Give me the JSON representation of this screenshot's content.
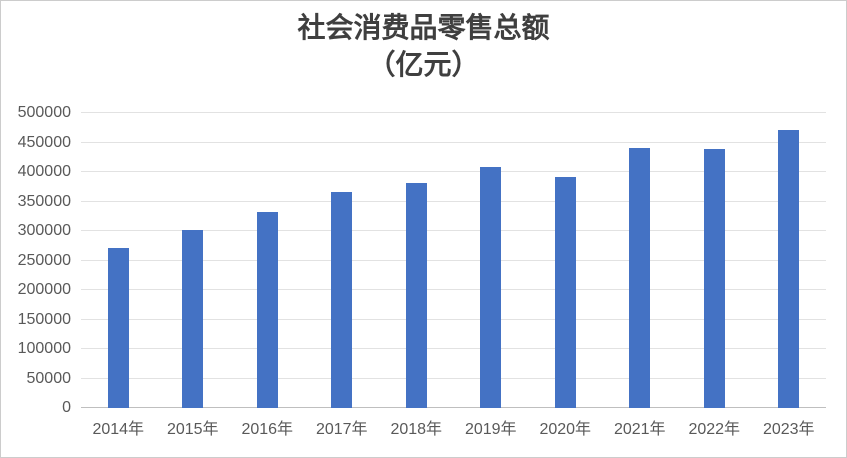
{
  "chart_data": {
    "type": "bar",
    "title": "社会消费品零售总额",
    "subtitle": "（亿元）",
    "categories": [
      "2014年",
      "2015年",
      "2016年",
      "2017年",
      "2018年",
      "2019年",
      "2020年",
      "2021年",
      "2022年",
      "2023年"
    ],
    "values": [
      271896,
      300931,
      332316,
      366262,
      380987,
      408017,
      391981,
      440823,
      439733,
      471495
    ],
    "xlabel": "",
    "ylabel": "",
    "ylim": [
      0,
      500000
    ],
    "yticks": [
      0,
      50000,
      100000,
      150000,
      200000,
      250000,
      300000,
      350000,
      400000,
      450000,
      500000
    ],
    "grid": "on",
    "legend": "none",
    "colors": {
      "bar": "#4472C4",
      "gridline": "#E2E2E2",
      "axis_line": "#BFBFBF",
      "title_text": "#3F3F3F",
      "tick_text": "#595959",
      "background": "#FFFFFF",
      "frame_border": "#CCCCCC"
    }
  }
}
